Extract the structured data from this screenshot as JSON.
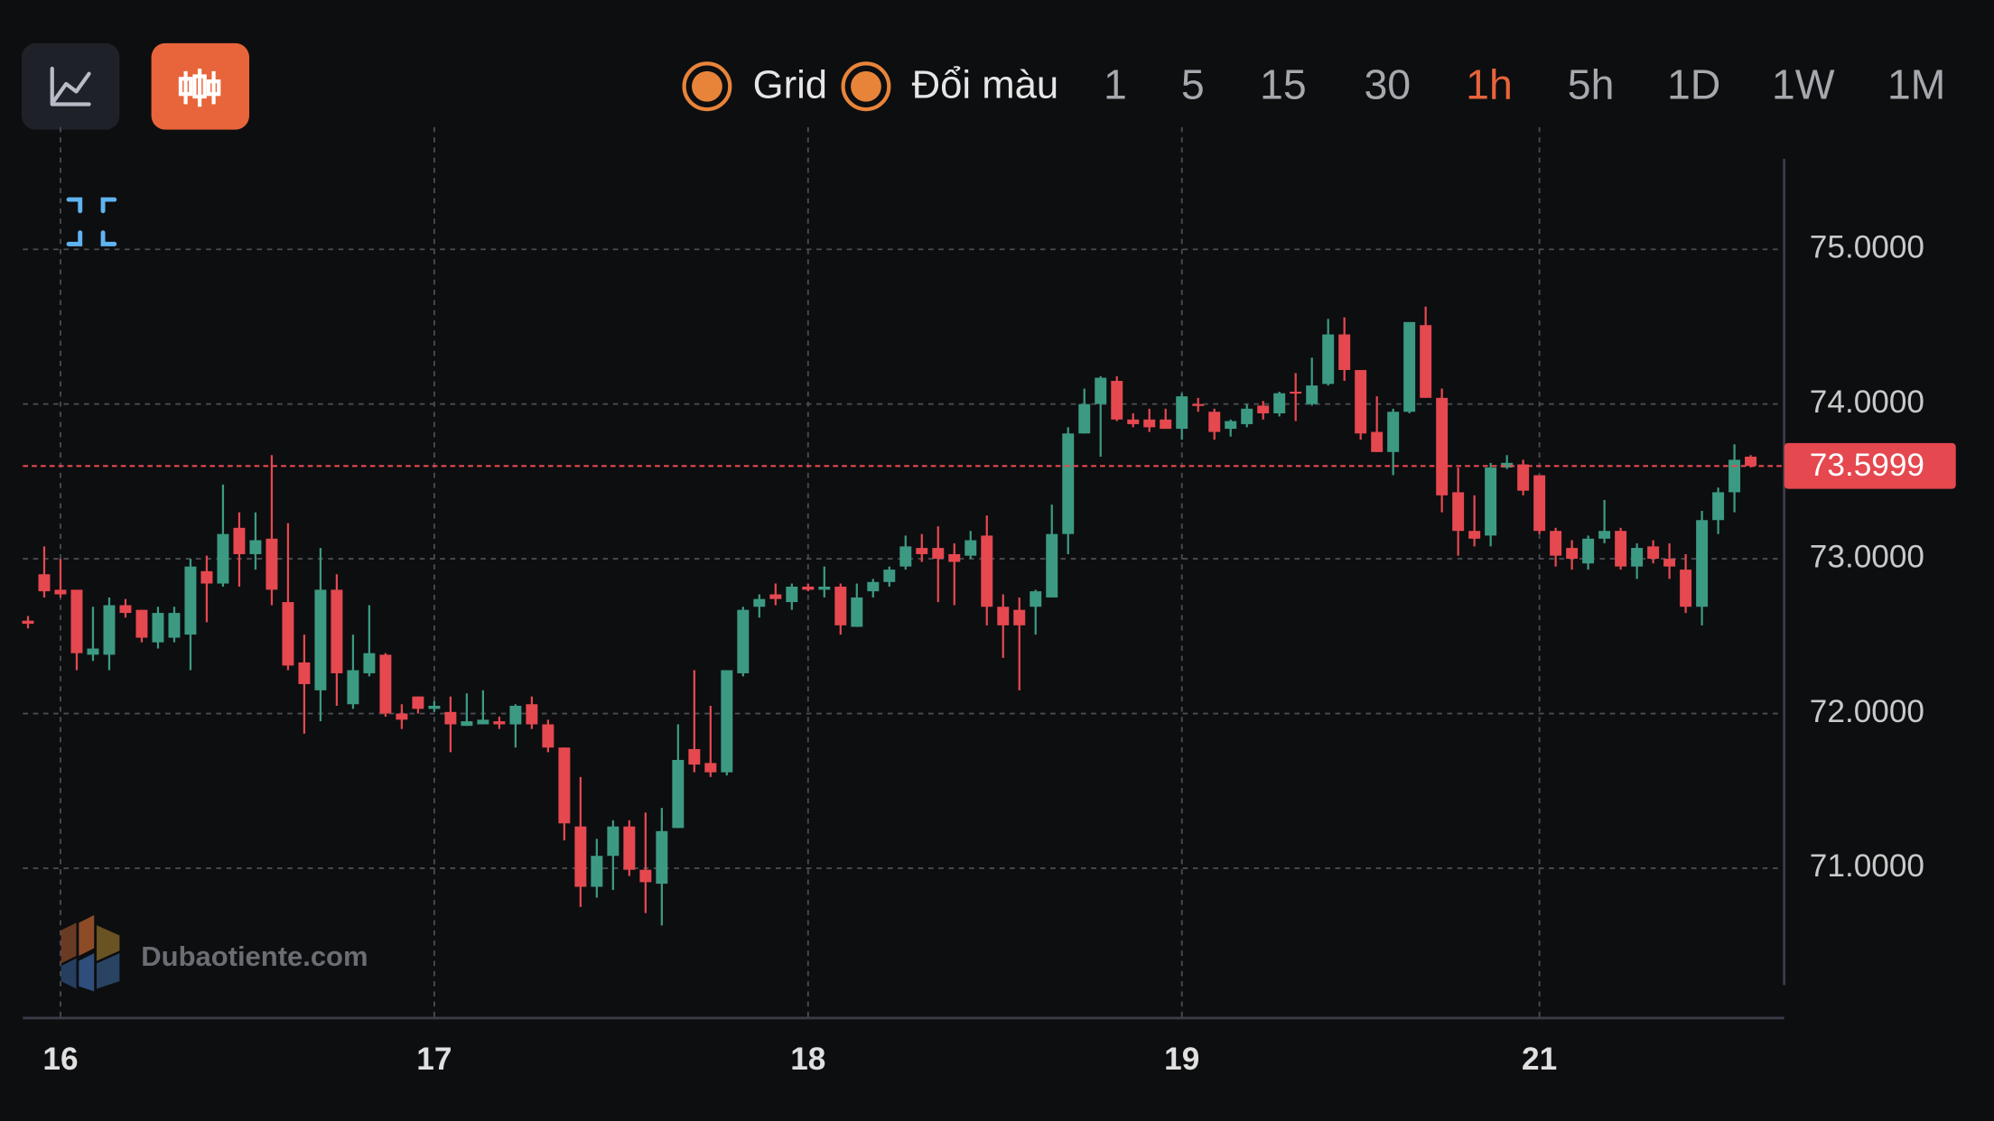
{
  "toolbar": {
    "toggles": [
      {
        "label": "Grid",
        "checked": true
      },
      {
        "label": "Đổi màu",
        "checked": true
      }
    ],
    "intervals": [
      {
        "label": "1",
        "active": false
      },
      {
        "label": "5",
        "active": false
      },
      {
        "label": "15",
        "active": false
      },
      {
        "label": "30",
        "active": false
      },
      {
        "label": "1h",
        "active": true
      },
      {
        "label": "5h",
        "active": false
      },
      {
        "label": "1D",
        "active": false
      },
      {
        "label": "1W",
        "active": false
      },
      {
        "label": "1M",
        "active": false
      }
    ]
  },
  "watermark": "Dubaotiente.com",
  "chart_data": {
    "type": "candlestick",
    "grid": true,
    "up_color": "#3c9a83",
    "down_color": "#e5484f",
    "ylim": [
      70.04,
      75.79
    ],
    "yticks": [
      {
        "value": 71,
        "label": "71.0000"
      },
      {
        "value": 72,
        "label": "72.0000"
      },
      {
        "value": 73,
        "label": "73.0000"
      },
      {
        "value": 74,
        "label": "74.0000"
      },
      {
        "value": 75,
        "label": "75.0000"
      }
    ],
    "last_price": 73.5999,
    "last_price_color": "#e5484f",
    "categories": [
      null,
      null,
      "16",
      null,
      null,
      null,
      null,
      null,
      null,
      null,
      null,
      null,
      null,
      null,
      null,
      null,
      null,
      null,
      null,
      null,
      null,
      null,
      null,
      null,
      null,
      "17",
      null,
      null,
      null,
      null,
      null,
      null,
      null,
      null,
      null,
      null,
      null,
      null,
      null,
      null,
      null,
      null,
      null,
      null,
      null,
      null,
      null,
      null,
      "18",
      null,
      null,
      null,
      null,
      null,
      null,
      null,
      null,
      null,
      null,
      null,
      null,
      null,
      null,
      null,
      null,
      null,
      null,
      null,
      null,
      null,
      null,
      "19",
      null,
      null,
      null,
      null,
      null,
      null,
      null,
      null,
      null,
      null,
      null,
      null,
      null,
      null,
      null,
      null,
      null,
      null,
      null,
      null,
      null,
      "21",
      null,
      null,
      null,
      null,
      null,
      null,
      null,
      null,
      null,
      null,
      null,
      null,
      null
    ],
    "open": [
      72.6,
      72.9,
      72.8,
      72.8,
      72.38,
      72.38,
      72.7,
      72.67,
      72.46,
      72.49,
      72.51,
      72.92,
      72.84,
      73.2,
      73.03,
      73.13,
      72.72,
      72.33,
      72.15,
      72.8,
      72.06,
      72.26,
      72.38,
      72.0,
      72.11,
      72.03,
      72.01,
      71.92,
      71.93,
      71.95,
      71.93,
      72.06,
      71.93,
      71.78,
      71.27,
      70.88,
      71.08,
      71.27,
      70.99,
      70.9,
      71.26,
      71.77,
      71.68,
      71.62,
      72.26,
      72.69,
      72.77,
      72.72,
      72.82,
      72.8,
      72.82,
      72.56,
      72.79,
      72.85,
      72.95,
      73.07,
      73.07,
      73.03,
      73.02,
      73.15,
      72.69,
      72.67,
      72.69,
      72.75,
      73.16,
      73.81,
      74.0,
      74.15,
      73.9,
      73.9,
      73.9,
      73.84,
      74.0,
      73.95,
      73.84,
      73.87,
      73.99,
      73.94,
      74.08,
      74.0,
      74.13,
      74.45,
      74.22,
      73.82,
      73.69,
      73.95,
      74.51,
      74.04,
      73.43,
      73.18,
      73.15,
      73.59,
      73.61,
      73.54,
      73.18,
      73.07,
      72.97,
      73.13,
      73.18,
      72.95,
      73.08,
      73.0,
      72.93,
      72.69,
      73.25,
      73.43,
      73.66
    ],
    "high": [
      72.63,
      73.08,
      73.0,
      72.8,
      72.69,
      72.75,
      72.74,
      72.67,
      72.69,
      72.69,
      73.0,
      73.02,
      73.48,
      73.3,
      73.3,
      73.67,
      73.23,
      72.51,
      73.07,
      72.9,
      72.51,
      72.7,
      72.39,
      72.06,
      72.11,
      72.08,
      72.11,
      72.13,
      72.15,
      71.98,
      72.06,
      72.11,
      71.96,
      71.78,
      71.59,
      71.19,
      71.31,
      71.31,
      71.36,
      71.39,
      71.93,
      72.28,
      72.05,
      72.28,
      72.69,
      72.77,
      72.84,
      72.84,
      72.84,
      72.95,
      72.84,
      72.84,
      72.87,
      72.95,
      73.15,
      73.16,
      73.21,
      73.1,
      73.18,
      73.28,
      72.77,
      72.75,
      72.8,
      73.35,
      73.85,
      74.1,
      74.18,
      74.18,
      73.94,
      73.97,
      73.97,
      74.07,
      74.04,
      73.97,
      73.9,
      74.0,
      74.02,
      74.08,
      74.2,
      74.3,
      74.55,
      74.56,
      74.22,
      74.05,
      73.97,
      74.53,
      74.63,
      74.1,
      73.59,
      73.41,
      73.62,
      73.67,
      73.64,
      73.54,
      73.2,
      73.12,
      73.15,
      73.38,
      73.2,
      73.1,
      73.12,
      73.1,
      73.03,
      73.31,
      73.46,
      73.74,
      73.67
    ],
    "low": [
      72.55,
      72.75,
      72.75,
      72.28,
      72.34,
      72.28,
      72.62,
      72.46,
      72.42,
      72.46,
      72.28,
      72.59,
      72.82,
      72.82,
      72.93,
      72.7,
      72.28,
      71.87,
      71.95,
      72.05,
      72.03,
      72.24,
      71.98,
      71.9,
      72.0,
      72.01,
      71.75,
      71.92,
      71.93,
      71.9,
      71.78,
      71.9,
      71.75,
      71.18,
      70.75,
      70.81,
      70.86,
      70.95,
      70.71,
      70.63,
      71.26,
      71.62,
      71.59,
      71.6,
      72.24,
      72.62,
      72.7,
      72.67,
      72.79,
      72.75,
      72.51,
      72.56,
      72.75,
      72.82,
      72.93,
      72.98,
      72.72,
      72.7,
      73.0,
      72.57,
      72.36,
      72.15,
      72.51,
      72.75,
      73.03,
      73.81,
      73.66,
      73.89,
      73.85,
      73.82,
      73.84,
      73.77,
      73.95,
      73.77,
      73.79,
      73.85,
      73.9,
      73.92,
      73.89,
      73.99,
      74.12,
      74.15,
      73.77,
      73.69,
      73.54,
      73.94,
      74.04,
      73.3,
      73.02,
      73.08,
      73.08,
      73.58,
      73.41,
      73.16,
      72.95,
      72.93,
      72.93,
      73.1,
      72.93,
      72.87,
      72.97,
      72.87,
      72.65,
      72.57,
      73.16,
      73.3,
      73.59
    ],
    "close": [
      72.58,
      72.79,
      72.77,
      72.39,
      72.42,
      72.7,
      72.65,
      72.49,
      72.65,
      72.65,
      72.95,
      72.84,
      73.16,
      73.03,
      73.12,
      72.8,
      72.31,
      72.19,
      72.8,
      72.26,
      72.28,
      72.39,
      72.0,
      71.96,
      72.03,
      72.05,
      71.93,
      71.95,
      71.96,
      71.93,
      72.05,
      71.93,
      71.78,
      71.29,
      70.88,
      71.08,
      71.27,
      70.99,
      70.91,
      71.24,
      71.7,
      71.67,
      71.62,
      72.28,
      72.67,
      72.74,
      72.74,
      72.82,
      72.8,
      72.82,
      72.57,
      72.75,
      72.85,
      72.93,
      73.08,
      73.03,
      73.0,
      72.98,
      73.12,
      72.69,
      72.57,
      72.57,
      72.79,
      73.16,
      73.81,
      74.0,
      74.17,
      73.9,
      73.87,
      73.85,
      73.84,
      74.05,
      73.99,
      73.82,
      73.89,
      73.97,
      73.94,
      74.07,
      74.07,
      74.12,
      74.45,
      74.22,
      73.81,
      73.69,
      73.95,
      74.53,
      74.04,
      73.41,
      73.18,
      73.13,
      73.59,
      73.62,
      73.44,
      73.18,
      73.02,
      73.0,
      73.13,
      73.18,
      72.95,
      73.07,
      73.0,
      72.95,
      72.69,
      73.25,
      73.43,
      73.64,
      73.6
    ]
  }
}
